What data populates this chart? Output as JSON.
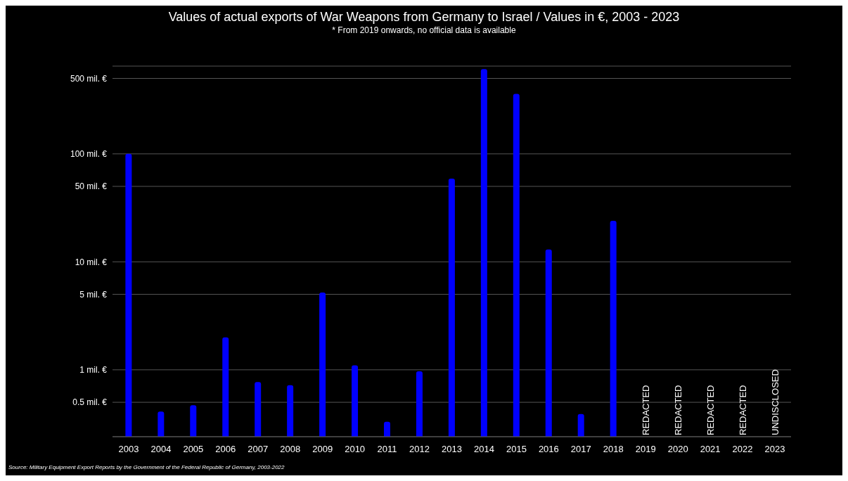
{
  "chart_data": {
    "type": "bar",
    "title": "Values of actual exports of War Weapons from Germany to Israel / Values in €, 2003 - 2023",
    "subtitle": "* From 2019 onwards, no official data is available",
    "categories": [
      "2003",
      "2004",
      "2005",
      "2006",
      "2007",
      "2008",
      "2009",
      "2010",
      "2011",
      "2012",
      "2013",
      "2014",
      "2015",
      "2016",
      "2017",
      "2018",
      "2019",
      "2020",
      "2021",
      "2022",
      "2023"
    ],
    "values": [
      100,
      0.41,
      0.47,
      2.0,
      0.77,
      0.72,
      5.2,
      1.1,
      0.33,
      0.97,
      59,
      610,
      360,
      13,
      0.39,
      24,
      null,
      null,
      null,
      null,
      null
    ],
    "value_labels": [
      null,
      null,
      null,
      null,
      null,
      null,
      null,
      null,
      null,
      null,
      null,
      null,
      null,
      null,
      null,
      null,
      "REDACTED",
      "REDACTED",
      "REDACTED",
      "REDACTED",
      "UNDISCLOSED"
    ],
    "color": "#0000ff",
    "log": true,
    "ylim": [
      0.24,
      650
    ],
    "yticks": [
      {
        "value": 0.5,
        "label": "0.5 mil. €"
      },
      {
        "value": 1,
        "label": "1 mil. €"
      },
      {
        "value": 5,
        "label": "5 mil. €"
      },
      {
        "value": 10,
        "label": "10 mil. €"
      },
      {
        "value": 50,
        "label": "50 mil. €"
      },
      {
        "value": 100,
        "label": "100 mil. €"
      },
      {
        "value": 500,
        "label": "500 mil. €"
      }
    ],
    "grid": "y",
    "annotations": [
      "Source: Military Equipment Export Reports by the Government of the Federal Republic of Germany, 2003-2022"
    ]
  }
}
